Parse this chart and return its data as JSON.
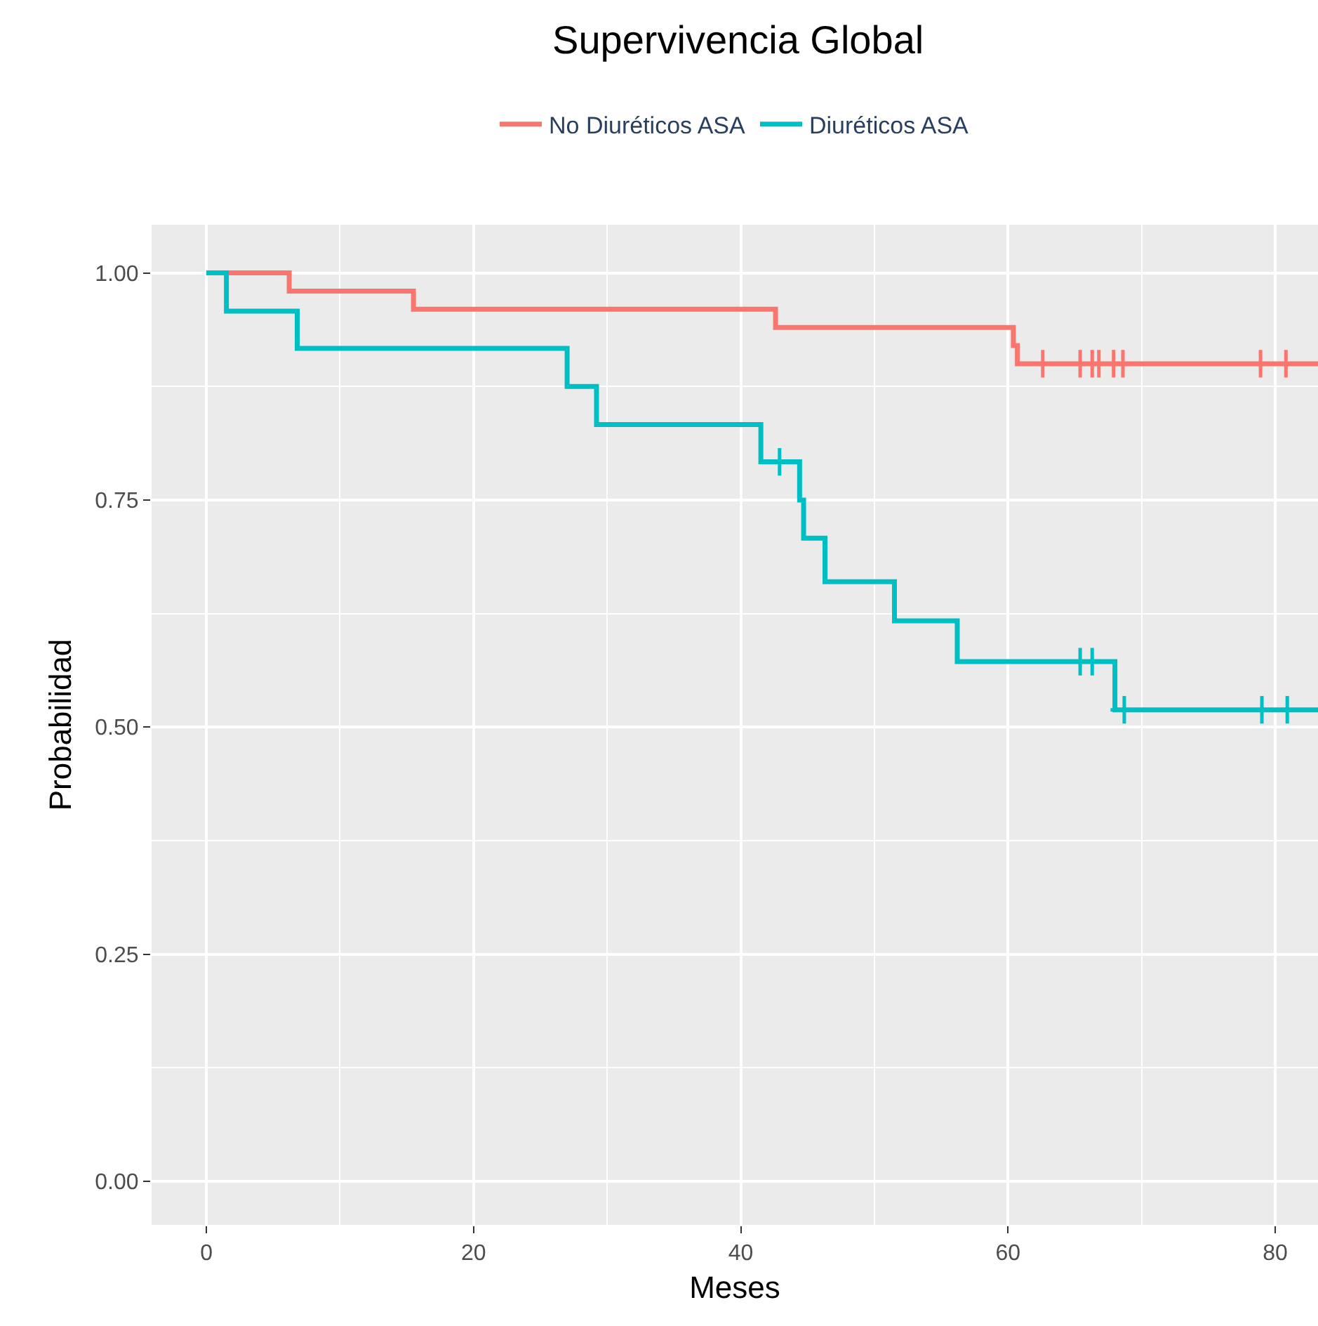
{
  "chart_data": {
    "type": "step",
    "title": "Supervivencia Global",
    "xlabel": "Meses",
    "ylabel": "Probabilidad",
    "xlim": [
      -4.1,
      83.2
    ],
    "xticks": [
      0,
      20,
      40,
      60,
      80
    ],
    "ylim": [
      -0.048,
      1.053
    ],
    "yticks": [
      {
        "value": 0,
        "label": "0.00"
      },
      {
        "value": 0.25,
        "label": "0.25"
      },
      {
        "value": 0.5,
        "label": "0.50"
      },
      {
        "value": 0.75,
        "label": "0.75"
      },
      {
        "value": 1,
        "label": "1.00"
      }
    ],
    "grid": true,
    "legend": "top",
    "line_style": "solid",
    "series": [
      {
        "name": "No Diuréticos ASA",
        "color": "#f8766d",
        "x": [
          0,
          6.2,
          15.5,
          42.6,
          60.4,
          60.7,
          83.2
        ],
        "values": [
          1,
          0.98,
          0.96,
          0.94,
          0.92,
          0.9,
          0.9
        ]
      },
      {
        "name": "Diuréticos ASA",
        "color": "#00bfc4",
        "x": [
          0,
          1.5,
          6.8,
          27.0,
          29.2,
          41.5,
          44.4,
          44.7,
          46.3,
          51.5,
          56.2,
          68.0,
          83.2
        ],
        "values": [
          1,
          0.958,
          0.917,
          0.875,
          0.833,
          0.792,
          0.75,
          0.708,
          0.66,
          0.617,
          0.572,
          0.519,
          0.519
        ]
      },
      {
        "type": "scatter",
        "marker": "cross",
        "color": "#f8766d",
        "x": [
          62.6,
          65.4,
          66.3,
          66.8,
          67.9,
          68.6,
          78.9,
          80.8
        ],
        "values": [
          0.9,
          0.9,
          0.9,
          0.9,
          0.9,
          0.9,
          0.9,
          0.9
        ]
      },
      {
        "type": "scatter",
        "marker": "cross",
        "color": "#00bfc4",
        "x": [
          42.9,
          65.4,
          66.3,
          68.7,
          79.0,
          80.9
        ],
        "values": [
          0.792,
          0.572,
          0.572,
          0.519,
          0.519,
          0.519
        ]
      }
    ]
  }
}
